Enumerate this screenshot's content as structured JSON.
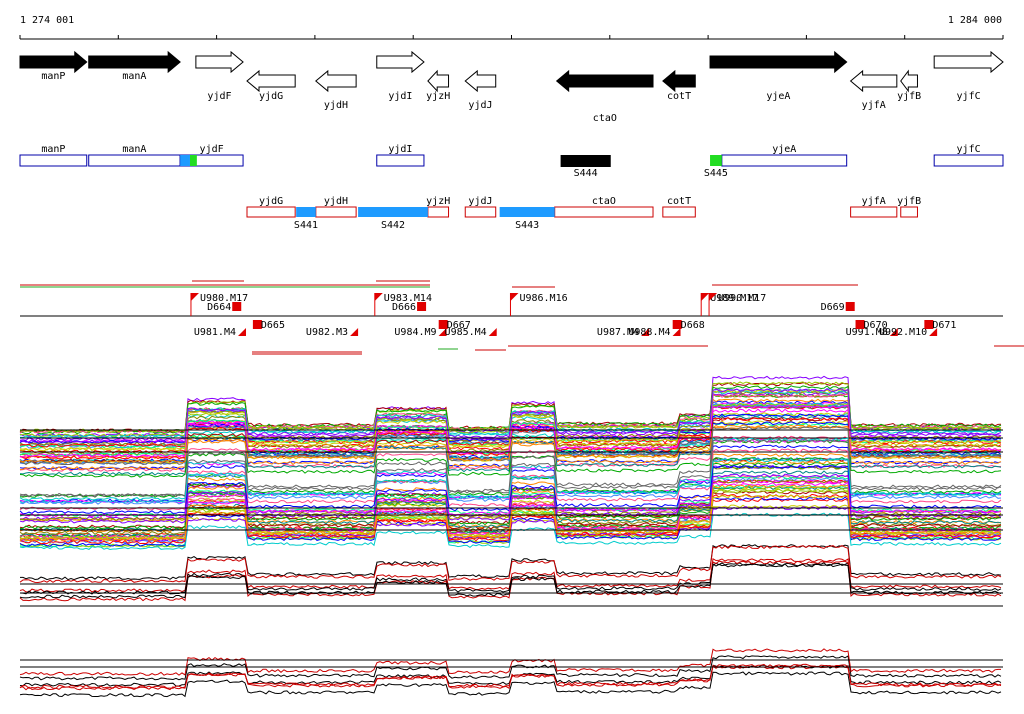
{
  "scale": {
    "start_label": "1 274 001",
    "end_label": "1 284 000",
    "start": 1274001,
    "end": 1284000
  },
  "colors": {
    "gene_fill": "#000000",
    "sense": "#0000aa",
    "antisense": "#cc0000",
    "cyan": "#1e9bff",
    "green": "#22dd22",
    "trace_black": "#000000",
    "trace_red": "#cc0000"
  },
  "genes": [
    {
      "name": "manP",
      "start": 1274001,
      "end": 1274680,
      "strand": "+",
      "filled": true,
      "row": 0
    },
    {
      "name": "manA",
      "start": 1274700,
      "end": 1275630,
      "strand": "+",
      "filled": true,
      "row": 0
    },
    {
      "name": "yjdF",
      "start": 1275790,
      "end": 1276270,
      "strand": "+",
      "filled": false,
      "row": 1
    },
    {
      "name": "yjdG",
      "start": 1276310,
      "end": 1276800,
      "strand": "-",
      "filled": false,
      "row": 1
    },
    {
      "name": "yjdH",
      "start": 1277010,
      "end": 1277420,
      "strand": "-",
      "filled": false,
      "row": 2
    },
    {
      "name": "yjdI",
      "start": 1277630,
      "end": 1278110,
      "strand": "+",
      "filled": false,
      "row": 1
    },
    {
      "name": "yjzH",
      "start": 1278150,
      "end": 1278360,
      "strand": "-",
      "filled": false,
      "row": 1
    },
    {
      "name": "yjdJ",
      "start": 1278530,
      "end": 1278840,
      "strand": "-",
      "filled": false,
      "row": 2
    },
    {
      "name": "ctaO",
      "start": 1279460,
      "end": 1280440,
      "strand": "-",
      "filled": true,
      "row": 3
    },
    {
      "name": "cotT",
      "start": 1280540,
      "end": 1280870,
      "strand": "-",
      "filled": true,
      "row": 1
    },
    {
      "name": "yjeA",
      "start": 1281020,
      "end": 1282410,
      "strand": "+",
      "filled": true,
      "row": 1
    },
    {
      "name": "yjfA",
      "start": 1282450,
      "end": 1282920,
      "strand": "-",
      "filled": false,
      "row": 2
    },
    {
      "name": "yjfB",
      "start": 1282960,
      "end": 1283130,
      "strand": "-",
      "filled": false,
      "row": 1
    },
    {
      "name": "yjfC",
      "start": 1283300,
      "end": 1284000,
      "strand": "+",
      "filled": false,
      "row": 1
    }
  ],
  "sense_track": [
    {
      "name": "manP",
      "start": 1274001,
      "end": 1274680
    },
    {
      "name": "manA",
      "start": 1274700,
      "end": 1275630
    },
    {
      "name": "yjdF",
      "start": 1275630,
      "end": 1276270
    },
    {
      "name": "yjdI",
      "start": 1277630,
      "end": 1278110
    },
    {
      "name": "yjeA",
      "start": 1281140,
      "end": 1282410
    },
    {
      "name": "yjfC",
      "start": 1283300,
      "end": 1284000
    }
  ],
  "sense_marks": [
    {
      "start": 1275630,
      "end": 1275730,
      "color": "cyan"
    },
    {
      "start": 1275730,
      "end": 1275800,
      "color": "green"
    },
    {
      "start": 1281020,
      "end": 1281140,
      "color": "green"
    }
  ],
  "sense_segments": [
    {
      "name": "S444",
      "start": 1279500,
      "end": 1280010
    },
    {
      "name": "S445",
      "start": 1281020,
      "end": 1281140
    }
  ],
  "antisense_track": [
    {
      "name": "yjdG",
      "start": 1276310,
      "end": 1276800
    },
    {
      "name": "yjdH",
      "start": 1277010,
      "end": 1277420
    },
    {
      "name": "yjzH",
      "start": 1278150,
      "end": 1278360
    },
    {
      "name": "yjdJ",
      "start": 1278530,
      "end": 1278840
    },
    {
      "name": "ctaO",
      "start": 1279440,
      "end": 1280440
    },
    {
      "name": "cotT",
      "start": 1280540,
      "end": 1280870
    },
    {
      "name": "yjfA",
      "start": 1282450,
      "end": 1282920
    },
    {
      "name": "yjfB",
      "start": 1282960,
      "end": 1283130
    }
  ],
  "antisense_segments": [
    {
      "name": "S441",
      "start": 1276810,
      "end": 1277010
    },
    {
      "name": "S442",
      "start": 1277440,
      "end": 1278150
    },
    {
      "name": "S443",
      "start": 1278880,
      "end": 1279440
    }
  ],
  "upshifts_top": [
    {
      "name": "U980.M17",
      "pos": 1275740
    },
    {
      "name": "U983.M14",
      "pos": 1277610
    },
    {
      "name": "U986.M16",
      "pos": 1278990
    },
    {
      "name": "U989.M17",
      "pos": 1280930
    },
    {
      "name": "U990.M17",
      "pos": 1281010
    }
  ],
  "downshifts_top": [
    {
      "name": "D664",
      "pos": 1276160
    },
    {
      "name": "D666",
      "pos": 1278040
    },
    {
      "name": "D669",
      "pos": 1282400
    }
  ],
  "upshifts_bottom": [
    {
      "name": "U981.M4",
      "pos": 1276300
    },
    {
      "name": "U982.M3",
      "pos": 1277440
    },
    {
      "name": "U984.M9",
      "pos": 1278340
    },
    {
      "name": "U985.M4",
      "pos": 1278850
    },
    {
      "name": "U987.M4",
      "pos": 1280400
    },
    {
      "name": "U988.M4",
      "pos": 1280720
    },
    {
      "name": "U991.M8",
      "pos": 1282930
    },
    {
      "name": "U992.M10",
      "pos": 1283330
    }
  ],
  "downshifts_bottom": [
    {
      "name": "D665",
      "pos": 1276370
    },
    {
      "name": "D667",
      "pos": 1278260
    },
    {
      "name": "D668",
      "pos": 1280640
    },
    {
      "name": "D670",
      "pos": 1282500
    },
    {
      "name": "D671",
      "pos": 1283200
    }
  ]
}
